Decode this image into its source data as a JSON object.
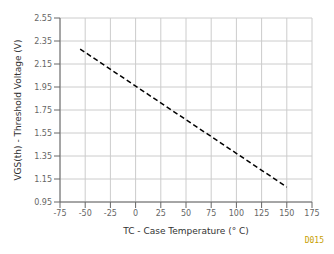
{
  "chart_data": {
    "type": "line",
    "x": [
      -55,
      150
    ],
    "values": [
      2.28,
      1.08
    ],
    "color": "#000000",
    "line_style": "dashed",
    "xlim": [
      -75,
      175
    ],
    "ylim": [
      0.95,
      2.55
    ],
    "xticks": [
      -75,
      -50,
      -25,
      0,
      25,
      50,
      75,
      100,
      125,
      150,
      175
    ],
    "yticks": [
      0.95,
      1.15,
      1.35,
      1.55,
      1.75,
      1.95,
      2.15,
      2.35,
      2.55
    ],
    "xlabel": "TC - Case Temperature (° C)",
    "ylabel": "VGS(th) - Threshold Voltage (V)",
    "grid": true,
    "annotations": [
      {
        "text": "D015",
        "color": "#c8a000"
      }
    ]
  }
}
